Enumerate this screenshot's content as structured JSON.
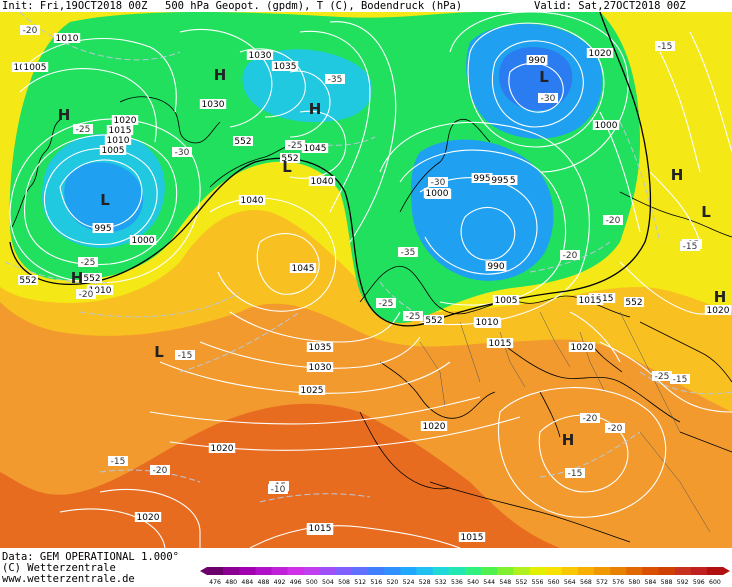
{
  "header": {
    "init": "Init: Fri,19OCT2018 00Z",
    "product": "500 hPa Geopot. (gpdm), T (C), Bodendruck (hPa)",
    "valid": "Valid: Sat,27OCT2018 00Z"
  },
  "footer": {
    "data_source": "Data: GEM OPERATIONAL 1.000°",
    "copyright": "(C) Wetterzentrale",
    "website": "www.wetterzentrale.de"
  },
  "colorbar": {
    "ticks": [
      "476",
      "480",
      "484",
      "488",
      "492",
      "496",
      "500",
      "504",
      "508",
      "512",
      "516",
      "520",
      "524",
      "528",
      "532",
      "536",
      "540",
      "544",
      "548",
      "552",
      "556",
      "560",
      "564",
      "568",
      "572",
      "576",
      "580",
      "584",
      "588",
      "592",
      "596",
      "600"
    ],
    "colors": [
      "#6a006a",
      "#8a0090",
      "#a000b0",
      "#b010c8",
      "#c020d8",
      "#d030e8",
      "#c040f0",
      "#a050f8",
      "#8060ff",
      "#6070ff",
      "#4080ff",
      "#3090ff",
      "#20a8ff",
      "#20c0f0",
      "#20d8d8",
      "#20e8b0",
      "#30f080",
      "#50f050",
      "#80f030",
      "#b0f020",
      "#e0f000",
      "#f8e000",
      "#f8c800",
      "#f8b000",
      "#f09800",
      "#e88000",
      "#e06800",
      "#d85000",
      "#d04000",
      "#c83020",
      "#c02020",
      "#b01010"
    ]
  },
  "map": {
    "fill_colors": {
      "ocean_warm": "#e86c20",
      "orange": "#f29a2e",
      "yellow_orange": "#f8c020",
      "yellow": "#f4e816",
      "green_blue": "#2cd44c",
      "green": "#20e05e",
      "cyan": "#20c8e0",
      "light_blue": "#20a0f0",
      "blue": "#2a7cf0"
    },
    "pressure_labels": [
      "1010",
      "1015",
      "1020",
      "1015",
      "1010",
      "1005",
      "995",
      "1000",
      "1010",
      "1030",
      "1035",
      "1030",
      "1045",
      "1040",
      "1040",
      "1045",
      "1035",
      "1030",
      "1025",
      "1020",
      "1020",
      "1020",
      "1015",
      "1020",
      "1000",
      "995",
      "990",
      "995",
      "1000",
      "1005",
      "1010",
      "1015",
      "1015",
      "1020",
      "1020",
      "1005",
      "1000",
      "995",
      "990",
      "1010",
      "1015",
      "1015",
      "1015"
    ],
    "geopot_labels": [
      "552",
      "552",
      "552",
      "552",
      "552",
      "552"
    ],
    "temp_labels": [
      "-20",
      "-25",
      "-30",
      "-20",
      "-25",
      "-25",
      "-35",
      "-30",
      "-30",
      "-35",
      "-25",
      "-25",
      "-20",
      "-20",
      "-15",
      "-15",
      "-20",
      "-15",
      "-15",
      "-15",
      "-20",
      "-15",
      "-10",
      "-15",
      "-15",
      "-20",
      "-25"
    ],
    "highs_lows": [
      "H",
      "L",
      "H",
      "H",
      "H",
      "L",
      "H",
      "L",
      "H",
      "L",
      "L",
      "H"
    ]
  }
}
